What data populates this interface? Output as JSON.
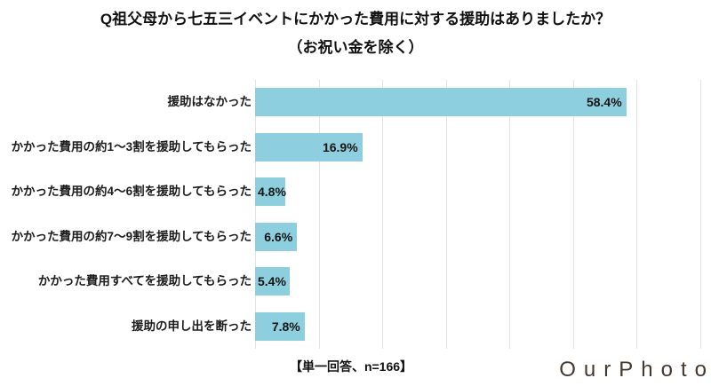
{
  "chart_data": {
    "type": "bar",
    "orientation": "horizontal",
    "title": "Q祖父母から七五三イベントにかかった費用に対する援助はありましたか？",
    "subtitle": "（お祝い金を除く）",
    "categories": [
      "援助はなかった",
      "かかった費用の約1～3割を援助してもらった",
      "かかった費用の約4～6割を援助してもらった",
      "かかった費用の約7～9割を援助してもらった",
      "かかった費用すべてを援助してもらった",
      "援助の申し出を断った"
    ],
    "values": [
      58.4,
      16.9,
      4.8,
      6.6,
      5.4,
      7.8
    ],
    "value_labels": [
      "58.4%",
      "16.9%",
      "4.8%",
      "6.6%",
      "5.4%",
      "7.8%"
    ],
    "xlim": [
      0,
      70
    ],
    "gridline_interval": 10,
    "grid": true,
    "axis_tick_labels_visible": false,
    "legend": false,
    "bar_color": "#8dcfde",
    "gridline_color": "#e3e3e3",
    "text_color": "#1c1c1c"
  },
  "note": "【単一回答、n=166】",
  "logo": "OurPhoto"
}
